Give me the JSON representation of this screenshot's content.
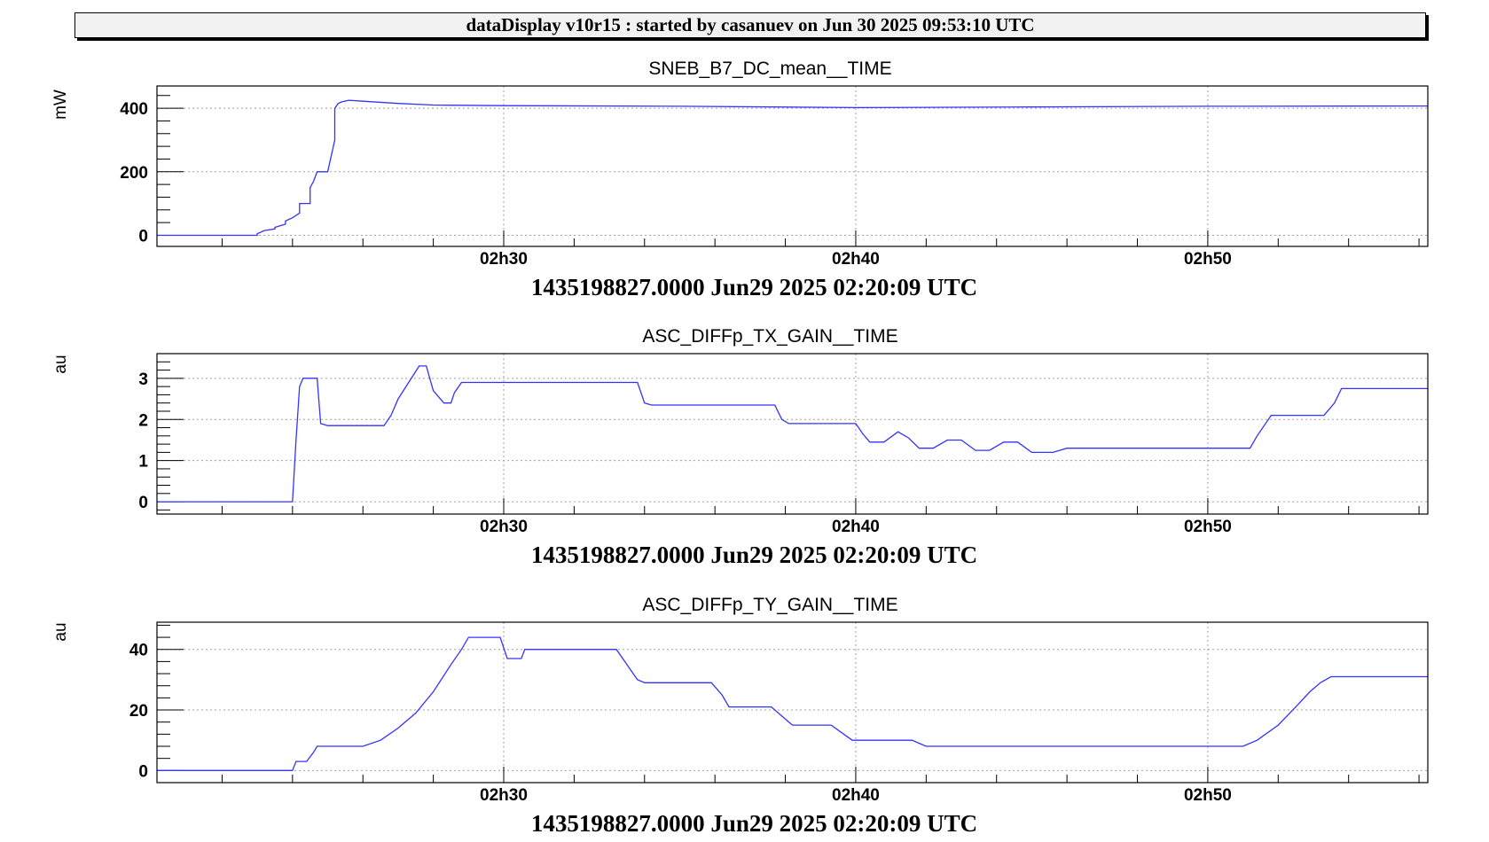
{
  "header": {
    "banner_text": "dataDisplay v10r15 : started by casanuev on Jun 30 2025 09:53:10 UTC"
  },
  "colors": {
    "series": "#3333ff",
    "grid": "#a0a0a0",
    "frame": "#000000"
  },
  "chart_data": [
    {
      "type": "line",
      "title": "SNEB_B7_DC_mean__TIME",
      "ylabel": "mW",
      "xlabel": "1435198827.0000 Jun29 2025 02:20:09 UTC",
      "xlim_minutes": [
        20.15,
        56.25
      ],
      "ylim": [
        -35,
        470
      ],
      "yticks": [
        0,
        200,
        400
      ],
      "xticks": [
        {
          "label": "02h30",
          "minute": 30
        },
        {
          "label": "02h40",
          "minute": 40
        },
        {
          "label": "02h50",
          "minute": 50
        }
      ],
      "grid": true,
      "series": [
        {
          "x_minutes": [
            20.15,
            23.0,
            23.0,
            23.2,
            23.5,
            23.5,
            23.8,
            23.8,
            24.0,
            24.2,
            24.2,
            24.5,
            24.5,
            24.6,
            24.7,
            24.7,
            24.8,
            25.0,
            25.2,
            25.2,
            25.3,
            25.4,
            25.6,
            26.0,
            27.0,
            28.0,
            30.0,
            35.0,
            40.0,
            45.0,
            50.0,
            56.25
          ],
          "y": [
            0,
            0,
            5,
            15,
            20,
            25,
            35,
            45,
            55,
            70,
            100,
            100,
            150,
            170,
            200,
            200,
            200,
            200,
            300,
            400,
            415,
            420,
            425,
            422,
            415,
            410,
            408,
            406,
            402,
            404,
            406,
            407
          ]
        }
      ]
    },
    {
      "type": "line",
      "title": "ASC_DIFFp_TX_GAIN__TIME",
      "ylabel": "au",
      "xlabel": "1435198827.0000 Jun29 2025 02:20:09 UTC",
      "xlim_minutes": [
        20.15,
        56.25
      ],
      "ylim": [
        -0.3,
        3.6
      ],
      "yticks": [
        0,
        1,
        2,
        3
      ],
      "xticks": [
        {
          "label": "02h30",
          "minute": 30
        },
        {
          "label": "02h40",
          "minute": 40
        },
        {
          "label": "02h50",
          "minute": 50
        }
      ],
      "grid": true,
      "series": [
        {
          "x_minutes": [
            20.15,
            24.0,
            24.1,
            24.2,
            24.3,
            24.7,
            24.8,
            25.0,
            26.6,
            26.8,
            27.0,
            27.3,
            27.6,
            27.8,
            27.9,
            28.0,
            28.3,
            28.5,
            28.6,
            28.8,
            28.9,
            29.0,
            33.8,
            34.0,
            34.2,
            37.7,
            37.9,
            38.1,
            40.0,
            40.2,
            40.4,
            40.8,
            41.2,
            41.5,
            41.8,
            42.2,
            42.6,
            43.0,
            43.4,
            43.8,
            44.2,
            44.6,
            45.0,
            45.6,
            46.0,
            51.2,
            51.4,
            51.8,
            52.2,
            53.3,
            53.6,
            53.8,
            54.2,
            56.25
          ],
          "y": [
            0,
            0,
            1.5,
            2.8,
            3.0,
            3.0,
            1.9,
            1.85,
            1.85,
            2.1,
            2.5,
            2.9,
            3.3,
            3.3,
            3.0,
            2.7,
            2.4,
            2.4,
            2.65,
            2.9,
            2.9,
            2.9,
            2.9,
            2.4,
            2.35,
            2.35,
            2.0,
            1.9,
            1.9,
            1.65,
            1.45,
            1.45,
            1.7,
            1.55,
            1.3,
            1.3,
            1.5,
            1.5,
            1.25,
            1.25,
            1.45,
            1.45,
            1.2,
            1.2,
            1.3,
            1.3,
            1.6,
            2.1,
            2.1,
            2.1,
            2.4,
            2.75,
            2.75,
            2.75
          ]
        }
      ]
    },
    {
      "type": "line",
      "title": "ASC_DIFFp_TY_GAIN__TIME",
      "ylabel": "au",
      "xlabel": "1435198827.0000 Jun29 2025 02:20:09 UTC",
      "xlim_minutes": [
        20.15,
        56.25
      ],
      "ylim": [
        -4,
        49
      ],
      "yticks": [
        0,
        20,
        40
      ],
      "xticks": [
        {
          "label": "02h30",
          "minute": 30
        },
        {
          "label": "02h40",
          "minute": 40
        },
        {
          "label": "02h50",
          "minute": 50
        }
      ],
      "grid": true,
      "series": [
        {
          "x_minutes": [
            20.15,
            24.0,
            24.1,
            24.4,
            24.6,
            24.7,
            26.0,
            26.5,
            27.0,
            27.5,
            28.0,
            28.5,
            28.8,
            29.0,
            29.5,
            29.9,
            30.1,
            30.5,
            30.6,
            30.7,
            33.2,
            33.5,
            33.8,
            34.0,
            35.9,
            36.2,
            36.4,
            37.6,
            37.9,
            38.2,
            39.3,
            39.6,
            39.9,
            40.0,
            41.6,
            41.8,
            42.0,
            51.0,
            51.4,
            52.0,
            52.5,
            52.9,
            53.2,
            53.5,
            56.25
          ],
          "y": [
            0,
            0,
            3,
            3,
            6,
            8,
            8,
            10,
            14,
            19,
            26,
            35,
            40,
            44,
            44,
            44,
            37,
            37,
            40,
            40,
            40,
            35,
            30,
            29,
            29,
            25,
            21,
            21,
            18,
            15,
            15,
            12.5,
            10,
            10,
            10,
            9,
            8,
            8,
            10,
            15,
            21,
            26,
            29,
            31,
            31
          ]
        }
      ]
    }
  ]
}
